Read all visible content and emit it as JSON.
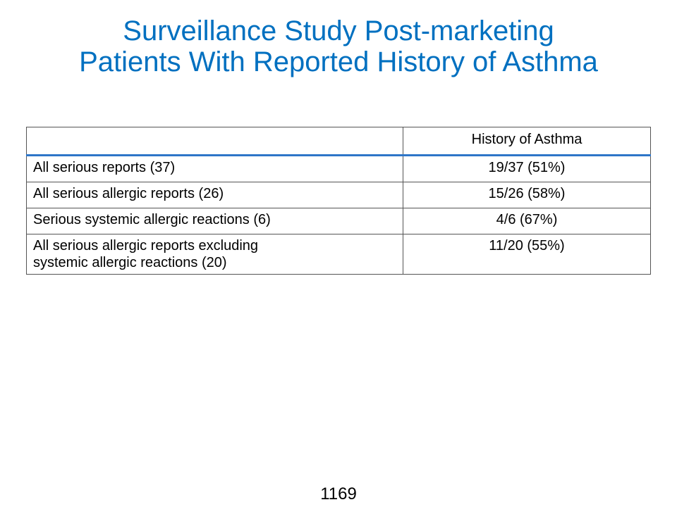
{
  "title": {
    "line1": "Surveillance Study Post-marketing",
    "line2": "Patients With Reported History of Asthma"
  },
  "table": {
    "header": {
      "blank": "",
      "column": "History of Asthma"
    },
    "rows": [
      {
        "label": "All serious reports (37)",
        "value": "19/37 (51%)"
      },
      {
        "label": "All serious allergic reports (26)",
        "value": "15/26 (58%)"
      },
      {
        "label": "Serious systemic allergic reactions (6)",
        "value": "4/6 (67%)"
      },
      {
        "label_line1": "All serious allergic reports excluding",
        "label_line2": "systemic allergic reactions (20)",
        "value": "11/20 (55%)"
      }
    ]
  },
  "page_number": "1169",
  "colors": {
    "title": "#0070c0",
    "header_rule": "#2e75c8"
  }
}
